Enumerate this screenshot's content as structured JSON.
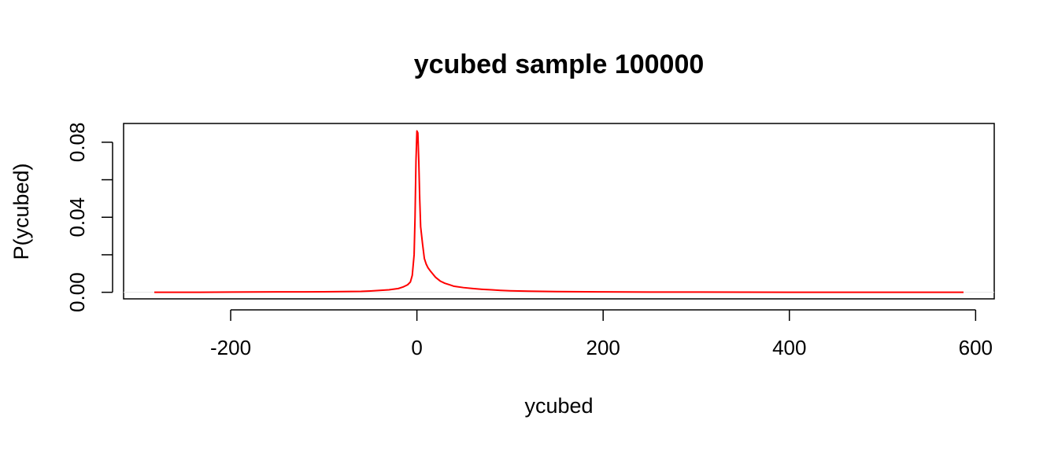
{
  "chart_data": {
    "type": "line",
    "title": "ycubed sample 100000",
    "xlabel": "ycubed",
    "ylabel": "P(ycubed)",
    "xlim": [
      -315,
      620
    ],
    "ylim": [
      -0.0035,
      0.09
    ],
    "xticks": [
      -200,
      0,
      200,
      400,
      600
    ],
    "xtick_labels": [
      "-200",
      "0",
      "200",
      "400",
      "600"
    ],
    "yticks": [
      0,
      0.02,
      0.04,
      0.06,
      0.08
    ],
    "ytick_labels": [
      "0.00",
      "",
      "0.04",
      "",
      "0.08"
    ],
    "grid": false,
    "legend": "none",
    "series": [
      {
        "color": "#ff0000",
        "x": [
          -282,
          -250,
          -200,
          -150,
          -120,
          -100,
          -80,
          -60,
          -50,
          -40,
          -30,
          -20,
          -15,
          -10,
          -7,
          -5,
          -3,
          -2,
          -1,
          0,
          1,
          2,
          3,
          4,
          6,
          8,
          10,
          12,
          15,
          20,
          25,
          30,
          35,
          40,
          50,
          60,
          70,
          80,
          90,
          100,
          120,
          150,
          200,
          250,
          300,
          400,
          500,
          587
        ],
        "y": [
          0.0,
          0.0,
          0.0001,
          0.0002,
          0.0002,
          0.0003,
          0.0004,
          0.0005,
          0.0007,
          0.001,
          0.0013,
          0.002,
          0.0028,
          0.004,
          0.0055,
          0.009,
          0.02,
          0.04,
          0.07,
          0.086,
          0.085,
          0.07,
          0.05,
          0.035,
          0.026,
          0.018,
          0.015,
          0.013,
          0.011,
          0.008,
          0.006,
          0.0048,
          0.004,
          0.0032,
          0.0025,
          0.002,
          0.0016,
          0.0013,
          0.001,
          0.0008,
          0.0006,
          0.0004,
          0.0002,
          0.0001,
          0.0001,
          0.0,
          0.0,
          0.0
        ]
      }
    ]
  }
}
